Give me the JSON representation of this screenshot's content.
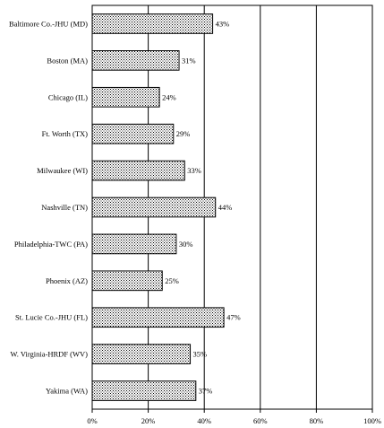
{
  "chart_data": {
    "type": "bar",
    "orientation": "horizontal",
    "title": "",
    "xlabel": "",
    "ylabel": "",
    "categories": [
      "Baltimore Co.-JHU (MD)",
      "Boston (MA)",
      "Chicago (IL)",
      "Ft. Worth (TX)",
      "Milwaukee (WI)",
      "Nashville (TN)",
      "Philadelphia-TWC (PA)",
      "Phoenix (AZ)",
      "St. Lucie Co.-JHU (FL)",
      "W. Virginia-HRDF (WV)",
      "Yakima (WA)"
    ],
    "values": [
      43,
      31,
      24,
      29,
      33,
      44,
      30,
      25,
      47,
      35,
      37
    ],
    "value_labels": [
      "43%",
      "31%",
      "24%",
      "29%",
      "33%",
      "44%",
      "30%",
      "25%",
      "47%",
      "35%",
      "37%"
    ],
    "xlim": [
      0,
      100
    ],
    "xticks": [
      0,
      20,
      40,
      60,
      80,
      100
    ],
    "xtick_labels": [
      "0%",
      "20%",
      "40%",
      "60%",
      "80%",
      "100%"
    ],
    "grid": "vertical",
    "legend": "none",
    "bar_fill": "dotted-pattern"
  }
}
